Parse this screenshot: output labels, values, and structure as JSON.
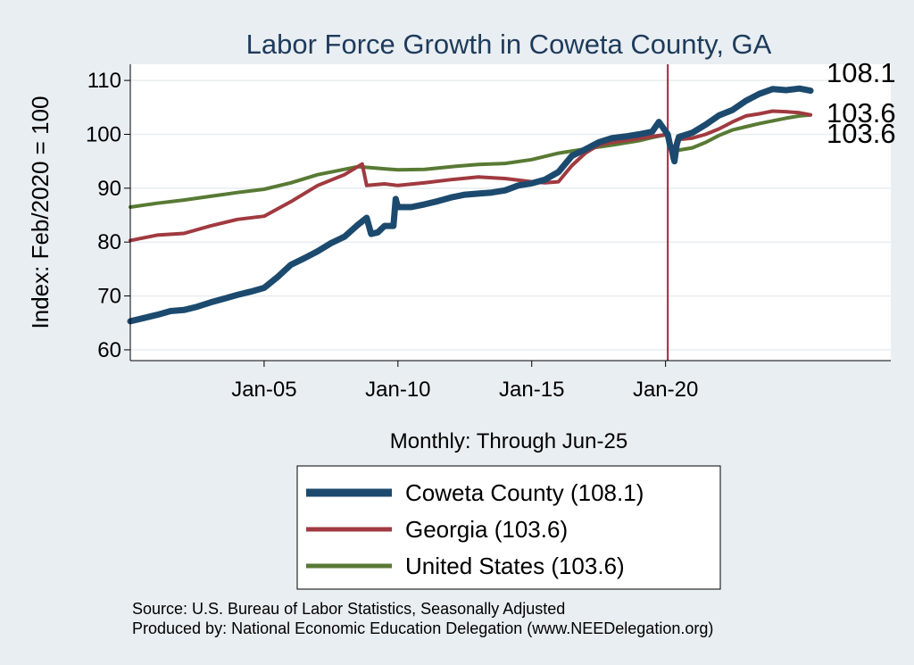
{
  "chart_data": {
    "type": "line",
    "title": "Labor Force Growth in Coweta  County, GA",
    "ylabel": "Index: Feb/2020 = 100",
    "xlabel": "Monthly: Through Jun-25",
    "ylim": [
      58,
      113
    ],
    "xlim": [
      "2000-01",
      "2028-06"
    ],
    "yticks": [
      60,
      70,
      80,
      90,
      100,
      110
    ],
    "xticks": [
      {
        "label": "Jan-05",
        "x": "2005-01"
      },
      {
        "label": "Jan-10",
        "x": "2010-01"
      },
      {
        "label": "Jan-15",
        "x": "2015-01"
      },
      {
        "label": "Jan-20",
        "x": "2020-01"
      }
    ],
    "grid": "horizontal",
    "vline": {
      "x": "2020-02",
      "color": "#b4213f"
    },
    "series": [
      {
        "name": "Coweta  County",
        "legend": "Coweta  County (108.1)",
        "end_label": "108.1",
        "color": "#1c4a6e",
        "width": 7,
        "points": [
          [
            "2000-01",
            65.3
          ],
          [
            "2000-07",
            65.9
          ],
          [
            "2001-01",
            66.5
          ],
          [
            "2001-07",
            67.2
          ],
          [
            "2002-01",
            67.4
          ],
          [
            "2002-07",
            68.0
          ],
          [
            "2003-01",
            68.8
          ],
          [
            "2003-07",
            69.5
          ],
          [
            "2004-01",
            70.2
          ],
          [
            "2004-07",
            70.8
          ],
          [
            "2005-01",
            71.5
          ],
          [
            "2005-07",
            73.5
          ],
          [
            "2006-01",
            75.8
          ],
          [
            "2006-07",
            77.0
          ],
          [
            "2007-01",
            78.3
          ],
          [
            "2007-07",
            79.8
          ],
          [
            "2008-01",
            81.0
          ],
          [
            "2008-07",
            83.2
          ],
          [
            "2008-11",
            84.5
          ],
          [
            "2009-01",
            81.5
          ],
          [
            "2009-04",
            81.8
          ],
          [
            "2009-07",
            83.0
          ],
          [
            "2009-11",
            83.0
          ],
          [
            "2009-12",
            88.0
          ],
          [
            "2010-01",
            86.5
          ],
          [
            "2010-07",
            86.5
          ],
          [
            "2011-01",
            87.0
          ],
          [
            "2011-07",
            87.6
          ],
          [
            "2012-01",
            88.3
          ],
          [
            "2012-07",
            88.8
          ],
          [
            "2013-01",
            89.0
          ],
          [
            "2013-07",
            89.2
          ],
          [
            "2014-01",
            89.6
          ],
          [
            "2014-07",
            90.5
          ],
          [
            "2015-01",
            90.9
          ],
          [
            "2015-07",
            91.6
          ],
          [
            "2016-01",
            93.0
          ],
          [
            "2016-07",
            96.0
          ],
          [
            "2017-01",
            97.2
          ],
          [
            "2017-07",
            98.5
          ],
          [
            "2018-01",
            99.3
          ],
          [
            "2018-07",
            99.6
          ],
          [
            "2019-01",
            100.0
          ],
          [
            "2019-07",
            100.5
          ],
          [
            "2019-10",
            102.3
          ],
          [
            "2020-02",
            100.0
          ],
          [
            "2020-03",
            98.0
          ],
          [
            "2020-04",
            97.0
          ],
          [
            "2020-05",
            95.0
          ],
          [
            "2020-06",
            98.0
          ],
          [
            "2020-07",
            99.5
          ],
          [
            "2021-01",
            100.3
          ],
          [
            "2021-07",
            101.8
          ],
          [
            "2022-01",
            103.5
          ],
          [
            "2022-07",
            104.5
          ],
          [
            "2023-01",
            106.2
          ],
          [
            "2023-07",
            107.5
          ],
          [
            "2024-01",
            108.4
          ],
          [
            "2024-07",
            108.2
          ],
          [
            "2025-01",
            108.5
          ],
          [
            "2025-06",
            108.1
          ]
        ]
      },
      {
        "name": "Georgia",
        "legend": "Georgia (103.6)",
        "end_label": "103.6",
        "color": "#a03a40",
        "width": 4,
        "points": [
          [
            "2000-01",
            80.3
          ],
          [
            "2001-01",
            81.3
          ],
          [
            "2002-01",
            81.6
          ],
          [
            "2003-01",
            83.0
          ],
          [
            "2004-01",
            84.2
          ],
          [
            "2005-01",
            84.8
          ],
          [
            "2006-01",
            87.5
          ],
          [
            "2007-01",
            90.5
          ],
          [
            "2008-01",
            92.5
          ],
          [
            "2008-09",
            94.5
          ],
          [
            "2008-11",
            90.5
          ],
          [
            "2009-07",
            90.8
          ],
          [
            "2010-01",
            90.5
          ],
          [
            "2011-01",
            91.0
          ],
          [
            "2012-01",
            91.6
          ],
          [
            "2013-01",
            92.1
          ],
          [
            "2014-01",
            91.8
          ],
          [
            "2015-01",
            91.2
          ],
          [
            "2015-07",
            91.0
          ],
          [
            "2016-01",
            91.2
          ],
          [
            "2016-07",
            94.2
          ],
          [
            "2017-01",
            96.5
          ],
          [
            "2017-07",
            98.0
          ],
          [
            "2018-01",
            98.5
          ],
          [
            "2019-01",
            99.2
          ],
          [
            "2019-07",
            99.6
          ],
          [
            "2020-02",
            100.0
          ],
          [
            "2020-04",
            96.0
          ],
          [
            "2020-06",
            99.0
          ],
          [
            "2021-01",
            99.3
          ],
          [
            "2021-07",
            100.0
          ],
          [
            "2022-01",
            101.0
          ],
          [
            "2022-07",
            102.3
          ],
          [
            "2023-01",
            103.4
          ],
          [
            "2023-07",
            103.8
          ],
          [
            "2024-01",
            104.3
          ],
          [
            "2024-07",
            104.2
          ],
          [
            "2025-01",
            104.0
          ],
          [
            "2025-06",
            103.6
          ]
        ]
      },
      {
        "name": "United States",
        "legend": "United States (103.6)",
        "end_label": "103.6",
        "color": "#587a34",
        "width": 4,
        "points": [
          [
            "2000-01",
            86.5
          ],
          [
            "2001-01",
            87.2
          ],
          [
            "2002-01",
            87.8
          ],
          [
            "2003-01",
            88.5
          ],
          [
            "2004-01",
            89.2
          ],
          [
            "2005-01",
            89.8
          ],
          [
            "2006-01",
            91.0
          ],
          [
            "2007-01",
            92.5
          ],
          [
            "2008-01",
            93.5
          ],
          [
            "2008-07",
            94.0
          ],
          [
            "2009-01",
            93.8
          ],
          [
            "2009-07",
            93.6
          ],
          [
            "2010-01",
            93.4
          ],
          [
            "2011-01",
            93.5
          ],
          [
            "2012-01",
            94.0
          ],
          [
            "2013-01",
            94.4
          ],
          [
            "2014-01",
            94.6
          ],
          [
            "2015-01",
            95.3
          ],
          [
            "2016-01",
            96.5
          ],
          [
            "2017-01",
            97.3
          ],
          [
            "2018-01",
            98.0
          ],
          [
            "2019-01",
            98.8
          ],
          [
            "2019-07",
            99.4
          ],
          [
            "2020-02",
            100.0
          ],
          [
            "2020-04",
            95.5
          ],
          [
            "2020-06",
            97.0
          ],
          [
            "2021-01",
            97.5
          ],
          [
            "2021-07",
            98.5
          ],
          [
            "2022-01",
            99.8
          ],
          [
            "2022-07",
            100.8
          ],
          [
            "2023-01",
            101.4
          ],
          [
            "2023-07",
            102.0
          ],
          [
            "2024-01",
            102.5
          ],
          [
            "2024-07",
            103.0
          ],
          [
            "2025-01",
            103.4
          ],
          [
            "2025-06",
            103.6
          ]
        ]
      }
    ],
    "notes": [
      "Source: U.S. Bureau of Labor Statistics, Seasonally Adjusted",
      "Produced by: National Economic Education Delegation (www.NEEDelegation.org)"
    ]
  }
}
